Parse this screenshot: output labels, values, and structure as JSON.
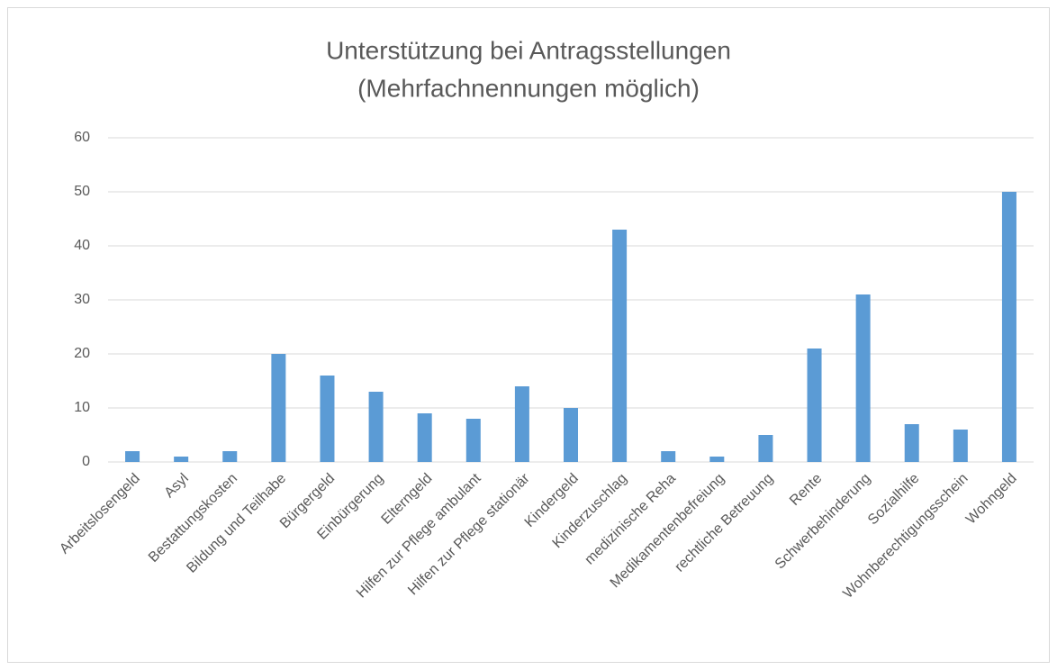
{
  "chart_data": {
    "type": "bar",
    "title": "Unterstützung bei Antragsstellungen",
    "subtitle": "(Mehrfachnennungen möglich)",
    "categories": [
      "Arbeitslosengeld",
      "Asyl",
      "Bestattungskosten",
      "Bildung und Teilhabe",
      "Bürgergeld",
      "Einbürgerung",
      "Elterngeld",
      "Hilfen zur Pflege ambulant",
      "Hilfen zur Pflege stationär",
      "Kindergeld",
      "Kinderzuschlag",
      "medizinische Reha",
      "Medikamentenbefreiung",
      "rechtliche Betreuung",
      "Rente",
      "Schwerbehinderung",
      "Sozialhilfe",
      "Wohnberechtigungsschein",
      "Wohngeld"
    ],
    "values": [
      2,
      1,
      2,
      20,
      16,
      13,
      9,
      8,
      14,
      10,
      43,
      2,
      1,
      5,
      21,
      31,
      7,
      6,
      50
    ],
    "color": "#5b9bd5",
    "ylim": [
      0,
      60
    ],
    "yticks": [
      0,
      10,
      20,
      30,
      40,
      50,
      60
    ],
    "grid": true
  }
}
